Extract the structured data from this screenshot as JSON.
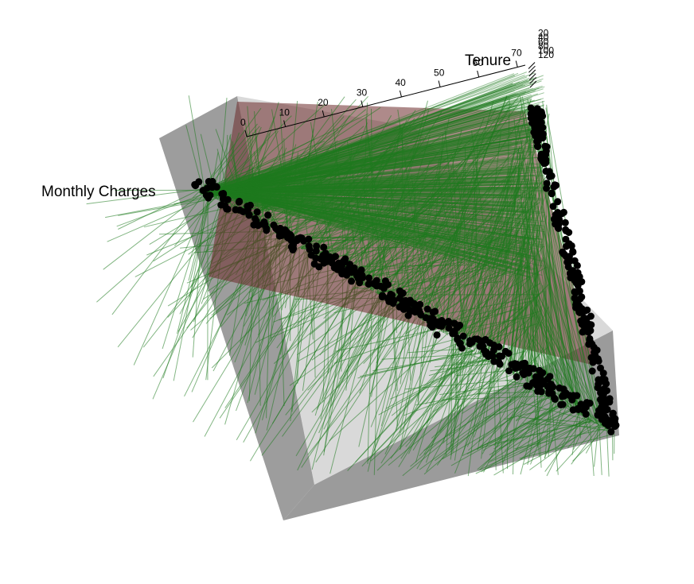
{
  "chart_data": {
    "type": "scatter",
    "projection": "3d",
    "title": "",
    "axes": {
      "x": {
        "label": "Tenure",
        "ticks": [
          0,
          10,
          20,
          30,
          40,
          50,
          60,
          70
        ],
        "range": [
          0,
          72
        ]
      },
      "y": {
        "label": "Monthly Charges",
        "ticks": [],
        "range": [
          18,
          119
        ]
      },
      "z": {
        "label": "",
        "ticks": [
          20,
          40,
          60,
          80,
          100,
          120
        ],
        "range": [
          18,
          120
        ]
      }
    },
    "elements": {
      "points": {
        "color": "#000000",
        "description": ""
      },
      "residual_segments": {
        "color": "#1e7a1e"
      },
      "fitted_plane": {
        "color": "#6b2a2a"
      },
      "bounding_box": {
        "color": "#7f7f7f"
      }
    },
    "grid": false,
    "legend": "none"
  }
}
